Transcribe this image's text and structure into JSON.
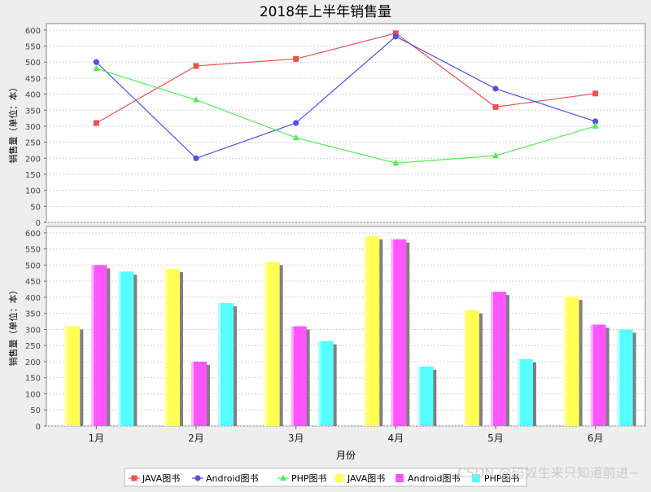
{
  "chart_data": [
    {
      "type": "line",
      "title": "2018年上半年销售量",
      "categories": [
        "1月",
        "2月",
        "3月",
        "4月",
        "5月",
        "6月"
      ],
      "ylabel": "销售量（单位：本）",
      "ylim": [
        0,
        620
      ],
      "yticks": [
        0,
        50,
        100,
        150,
        200,
        250,
        300,
        350,
        400,
        450,
        500,
        550,
        600
      ],
      "grid": true,
      "series": [
        {
          "name": "JAVA图书",
          "values": [
            310,
            488,
            510,
            590,
            360,
            402
          ],
          "color": "#f05050",
          "marker": "square"
        },
        {
          "name": "Android图书",
          "values": [
            500,
            200,
            310,
            580,
            417,
            315
          ],
          "color": "#5050f0",
          "marker": "circle"
        },
        {
          "name": "PHP图书",
          "values": [
            480,
            382,
            264,
            185,
            208,
            300
          ],
          "color": "#50f050",
          "marker": "triangle"
        }
      ]
    },
    {
      "type": "bar",
      "categories": [
        "1月",
        "2月",
        "3月",
        "4月",
        "5月",
        "6月"
      ],
      "xlabel": "月份",
      "ylabel": "销售量（单位：本）",
      "ylim": [
        0,
        620
      ],
      "yticks": [
        0,
        50,
        100,
        150,
        200,
        250,
        300,
        350,
        400,
        450,
        500,
        550,
        600
      ],
      "grid": true,
      "series": [
        {
          "name": "JAVA图书",
          "values": [
            310,
            488,
            510,
            590,
            360,
            402
          ],
          "color": "#ffff55"
        },
        {
          "name": "Android图书",
          "values": [
            500,
            200,
            310,
            580,
            417,
            315
          ],
          "color": "#ff55ff"
        },
        {
          "name": "PHP图书",
          "values": [
            480,
            382,
            264,
            185,
            208,
            300
          ],
          "color": "#55ffff"
        }
      ]
    }
  ],
  "watermark": "CSDN @码奴生来只知道前进~"
}
